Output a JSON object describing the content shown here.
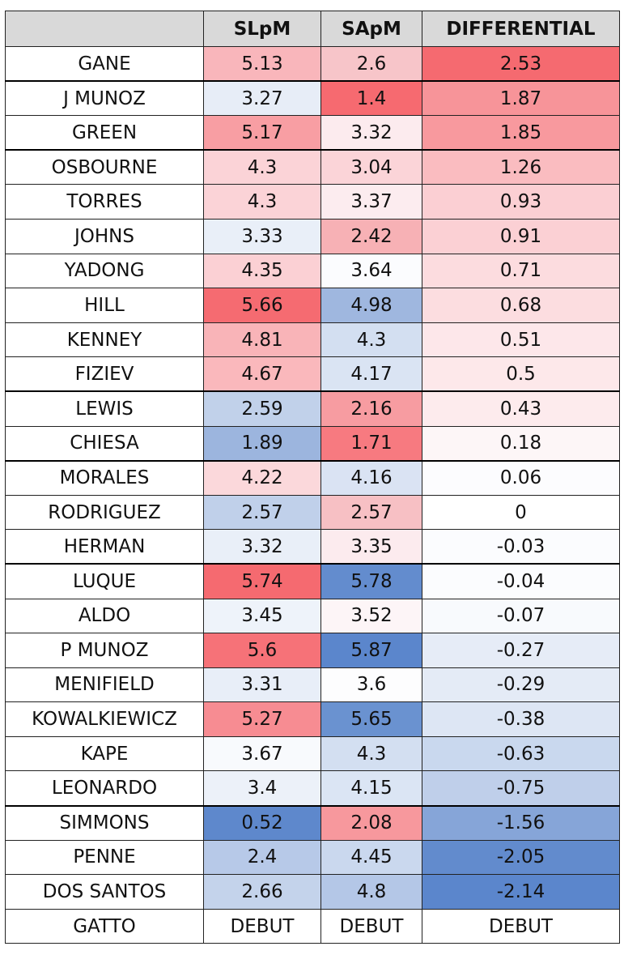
{
  "chart_data": {
    "type": "table",
    "columns": [
      "",
      "SLpM",
      "SApM",
      "DIFFERENTIAL"
    ],
    "rows": [
      {
        "name": "GANE",
        "slpm": "5.13",
        "sapm": "2.6",
        "diff": "2.53",
        "slpm_color": "#f9b6bb",
        "sapm_color": "#f7c5c9",
        "diff_color": "#f56a70"
      },
      {
        "name": "J MUNOZ",
        "slpm": "3.27",
        "sapm": "1.4",
        "diff": "1.87",
        "slpm_color": "#e7edf7",
        "sapm_color": "#f66a70",
        "diff_color": "#f79499"
      },
      {
        "name": "GREEN",
        "slpm": "5.17",
        "sapm": "3.32",
        "diff": "1.85",
        "slpm_color": "#f89ea3",
        "sapm_color": "#fcebee",
        "diff_color": "#f8999e"
      },
      {
        "name": "OSBOURNE",
        "slpm": "4.3",
        "sapm": "3.04",
        "diff": "1.26",
        "slpm_color": "#fbd3d7",
        "sapm_color": "#fbd4d8",
        "diff_color": "#fabcc0"
      },
      {
        "name": "TORRES",
        "slpm": "4.3",
        "sapm": "3.37",
        "diff": "0.93",
        "slpm_color": "#fbd3d7",
        "sapm_color": "#fcecef",
        "diff_color": "#fbcfd3"
      },
      {
        "name": "JOHNS",
        "slpm": "3.33",
        "sapm": "2.42",
        "diff": "0.91",
        "slpm_color": "#e9eff8",
        "sapm_color": "#f7b1b5",
        "diff_color": "#fbd0d4"
      },
      {
        "name": "YADONG",
        "slpm": "4.35",
        "sapm": "3.64",
        "diff": "0.71",
        "slpm_color": "#fbd0d4",
        "sapm_color": "#fbfcfe",
        "diff_color": "#fcdcdf"
      },
      {
        "name": "HILL",
        "slpm": "5.66",
        "sapm": "4.98",
        "diff": "0.68",
        "slpm_color": "#f56b71",
        "sapm_color": "#9fb7df",
        "diff_color": "#fcdde0"
      },
      {
        "name": "KENNEY",
        "slpm": "4.81",
        "sapm": "4.3",
        "diff": "0.51",
        "slpm_color": "#f9b4b8",
        "sapm_color": "#d3dff1",
        "diff_color": "#fde7ea"
      },
      {
        "name": "FIZIEV",
        "slpm": "4.67",
        "sapm": "4.17",
        "diff": "0.5",
        "slpm_color": "#fab8bc",
        "sapm_color": "#dae4f3",
        "diff_color": "#fde8ea"
      },
      {
        "name": "LEWIS",
        "slpm": "2.59",
        "sapm": "2.16",
        "diff": "0.43",
        "slpm_color": "#c1d1ea",
        "sapm_color": "#f79ca1",
        "diff_color": "#fdebed"
      },
      {
        "name": "CHIESA",
        "slpm": "1.89",
        "sapm": "1.71",
        "diff": "0.18",
        "slpm_color": "#9cb5de",
        "sapm_color": "#f77a80",
        "diff_color": "#fdf6f7"
      },
      {
        "name": "MORALES",
        "slpm": "4.22",
        "sapm": "4.16",
        "diff": "0.06",
        "slpm_color": "#fbd8db",
        "sapm_color": "#dae3f3",
        "diff_color": "#fcfcfe"
      },
      {
        "name": "RODRIGUEZ",
        "slpm": "2.57",
        "sapm": "2.57",
        "diff": "0",
        "slpm_color": "#c0d0ea",
        "sapm_color": "#f7c0c4",
        "diff_color": "#ffffff"
      },
      {
        "name": "HERMAN",
        "slpm": "3.32",
        "sapm": "3.35",
        "diff": "-0.03",
        "slpm_color": "#e9eff8",
        "sapm_color": "#fcebee",
        "diff_color": "#fbfcfe"
      },
      {
        "name": "LUQUE",
        "slpm": "5.74",
        "sapm": "5.78",
        "diff": "-0.04",
        "slpm_color": "#f56a70",
        "sapm_color": "#638cce",
        "diff_color": "#fbfcfe"
      },
      {
        "name": "ALDO",
        "slpm": "3.45",
        "sapm": "3.52",
        "diff": "-0.07",
        "slpm_color": "#eef3fa",
        "sapm_color": "#fdf5f7",
        "diff_color": "#f8fafd"
      },
      {
        "name": "P MUNOZ",
        "slpm": "5.6",
        "sapm": "5.87",
        "diff": "-0.27",
        "slpm_color": "#f67278",
        "sapm_color": "#5b86cc",
        "diff_color": "#e6ecf7"
      },
      {
        "name": "MENIFIELD",
        "slpm": "3.31",
        "sapm": "3.6",
        "diff": "-0.29",
        "slpm_color": "#e8eef8",
        "sapm_color": "#fdfdfe",
        "diff_color": "#e4ebf6"
      },
      {
        "name": "KOWALKIEWICZ",
        "slpm": "5.27",
        "sapm": "5.65",
        "diff": "-0.38",
        "slpm_color": "#f78c92",
        "sapm_color": "#6a92d0",
        "diff_color": "#dde6f4"
      },
      {
        "name": "KAPE",
        "slpm": "3.67",
        "sapm": "4.3",
        "diff": "-0.63",
        "slpm_color": "#f8fafd",
        "sapm_color": "#d3dff1",
        "diff_color": "#c9d8ee"
      },
      {
        "name": "LEONARDO",
        "slpm": "3.4",
        "sapm": "4.15",
        "diff": "-0.75",
        "slpm_color": "#ecf1f9",
        "sapm_color": "#dbe5f4",
        "diff_color": "#bfcfea"
      },
      {
        "name": "SIMMONS",
        "slpm": "0.52",
        "sapm": "2.08",
        "diff": "-1.56",
        "slpm_color": "#5e88cc",
        "sapm_color": "#f7989d",
        "diff_color": "#86a5d8"
      },
      {
        "name": "PENNE",
        "slpm": "2.4",
        "sapm": "4.45",
        "diff": "-2.05",
        "slpm_color": "#b7c9e8",
        "sapm_color": "#cad8ee",
        "diff_color": "#628bcd"
      },
      {
        "name": "DOS SANTOS",
        "slpm": "2.66",
        "sapm": "4.8",
        "diff": "-2.14",
        "slpm_color": "#c4d3eb",
        "sapm_color": "#b4c7e7",
        "diff_color": "#5b86cc"
      },
      {
        "name": "GATTO",
        "slpm": "DEBUT",
        "sapm": "DEBUT",
        "diff": "DEBUT",
        "slpm_color": "#ffffff",
        "sapm_color": "#ffffff",
        "diff_color": "#ffffff"
      }
    ],
    "color_scale": {
      "high": "#f8696b",
      "mid": "#ffffff",
      "low": "#5a8ac6"
    }
  }
}
